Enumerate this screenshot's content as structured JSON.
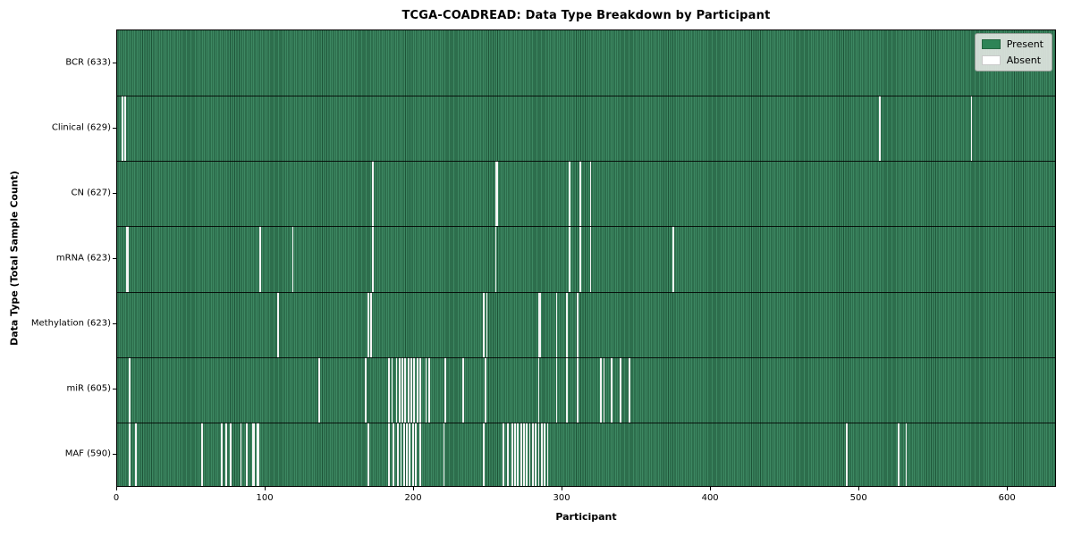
{
  "figure": {
    "title": "TCGA-COADREAD: Data Type Breakdown by Participant",
    "xlabel": "Participant",
    "ylabel": "Data Type (Total Sample Count)"
  },
  "legend": {
    "present_label": "Present",
    "absent_label": "Absent"
  },
  "colors": {
    "present": "#2e8456",
    "absent": "#ffffff",
    "bar_edge": "#13361f",
    "legend_bg": "#dee4de"
  },
  "chart_data": {
    "type": "heatmap",
    "title": "TCGA-COADREAD: Data Type Breakdown by Participant",
    "xlabel": "Participant",
    "ylabel": "Data Type (Total Sample Count)",
    "legend": [
      "Present",
      "Absent"
    ],
    "legend_position": "upper right",
    "grid": false,
    "x_range": [
      0,
      633
    ],
    "n_participants": 633,
    "x_ticks": [
      0,
      100,
      200,
      300,
      400,
      500,
      600
    ],
    "rows": [
      {
        "name": "BCR",
        "label": "BCR (633)",
        "total": 633,
        "absent_participants": []
      },
      {
        "name": "Clinical",
        "label": "Clinical (629)",
        "total": 629,
        "absent_participants": [
          3,
          5,
          514,
          576
        ]
      },
      {
        "name": "CN",
        "label": "CN (627)",
        "total": 627,
        "absent_participants": [
          172,
          255,
          256,
          305,
          312,
          319
        ]
      },
      {
        "name": "mRNA",
        "label": "mRNA (623)",
        "total": 623,
        "absent_participants": [
          6,
          7,
          96,
          118,
          172,
          255,
          305,
          312,
          319,
          375
        ]
      },
      {
        "name": "Methylation",
        "label": "Methylation (623)",
        "total": 623,
        "absent_participants": [
          108,
          169,
          171,
          247,
          249,
          284,
          285,
          296,
          303,
          310
        ]
      },
      {
        "name": "miR",
        "label": "miR (605)",
        "total": 605,
        "absent_participants": [
          8,
          136,
          167,
          183,
          185,
          188,
          190,
          192,
          194,
          196,
          198,
          200,
          202,
          204,
          208,
          210,
          221,
          233,
          248,
          284,
          296,
          303,
          310,
          326,
          328,
          333,
          339,
          345
        ]
      },
      {
        "name": "MAF",
        "label": "MAF (590)",
        "total": 590,
        "absent_participants": [
          8,
          12,
          57,
          70,
          73,
          76,
          83,
          87,
          91,
          92,
          94,
          95,
          169,
          183,
          186,
          189,
          191,
          193,
          195,
          197,
          199,
          201,
          204,
          220,
          247,
          260,
          263,
          266,
          268,
          270,
          272,
          274,
          276,
          278,
          280,
          282,
          284,
          286,
          288,
          290,
          492,
          527,
          532
        ]
      }
    ]
  }
}
